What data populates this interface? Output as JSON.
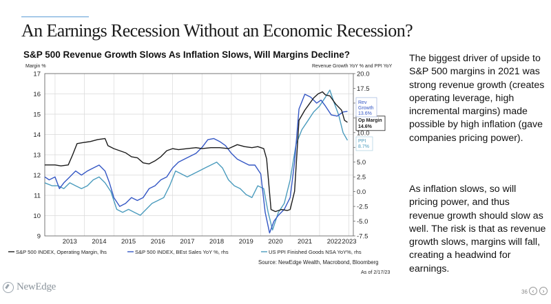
{
  "slide": {
    "title": "An Earnings Recession Without an Economic Recession?",
    "body_paragraph_1": "The biggest driver of upside to S&P 500 margins in 2021 was strong revenue growth (creates operating leverage, high incremental margins) made possible by high inflation (gave companies pricing power).",
    "body_paragraph_2": "As inflation slows, so will pricing power, and thus revenue growth should slow as well.  The risk is that as revenue growth slows, margins will fall, creating a headwind for earnings.",
    "logo_text": "NewEdge",
    "page_number": "36"
  },
  "colors": {
    "operating_margin": "#1a1a1a",
    "revenue_growth": "#3356c4",
    "ppi": "#4a9bbd",
    "accent_rule": "#5b9bd5"
  },
  "chart_data": {
    "type": "line",
    "title": "S&P 500 Revenue Growth Slows As Inflation Slows, Will Margins Decline?",
    "left_axis_label": "Margin %",
    "right_axis_label": "Revenue Growth YoY % and PPI YoY",
    "left_ylim": [
      9,
      17
    ],
    "right_ylim": [
      -7.5,
      20
    ],
    "left_ticks": [
      "9",
      "10",
      "11",
      "12",
      "13",
      "14",
      "15",
      "16",
      "17"
    ],
    "right_ticks": [
      "-7.5",
      "-5.0",
      "-2.5",
      "0.0",
      "2.5",
      "5.0",
      "7.5",
      "10.0",
      "12.5",
      "15.0",
      "17.5",
      "20.0"
    ],
    "x_ticks": [
      "2013",
      "2014",
      "2015",
      "2016",
      "2017",
      "2018",
      "2019",
      "2020",
      "2021",
      "2022",
      "2023"
    ],
    "grid": true,
    "source": "Source: NewEdge Wealth, Macrobond, Bloomberg",
    "as_of": "As of 2/17/23",
    "legend": [
      "S&P 500 INDEX, Operating Margin, lhs",
      "S&P 500 INDEX, BEst Sales YoY %, rhs",
      "US PPI Finished Goods NSA YoY%, rhs"
    ],
    "series": [
      {
        "name": "S&P 500 INDEX, Operating Margin, lhs",
        "axis": "left",
        "end_label": "Op Margin",
        "end_value": "14.6%",
        "x": [
          2012.65,
          2013.0,
          2013.2,
          2013.45,
          2013.6,
          2013.75,
          2013.95,
          2014.2,
          2014.45,
          2014.7,
          2014.8,
          2015.0,
          2015.2,
          2015.4,
          2015.6,
          2015.8,
          2016.0,
          2016.2,
          2016.4,
          2016.6,
          2016.8,
          2017.0,
          2017.2,
          2017.5,
          2017.8,
          2018.0,
          2018.3,
          2018.6,
          2018.9,
          2019.2,
          2019.45,
          2019.7,
          2019.9,
          2020.1,
          2020.2,
          2020.35,
          2020.5,
          2020.7,
          2020.9,
          2021.0,
          2021.15,
          2021.3,
          2021.5,
          2021.65,
          2021.8,
          2021.95,
          2022.1,
          2022.2,
          2022.35,
          2022.55,
          2022.75,
          2022.85,
          2022.95
        ],
        "y": [
          12.5,
          12.5,
          12.45,
          12.5,
          13.0,
          13.55,
          13.6,
          13.65,
          13.75,
          13.8,
          13.45,
          13.3,
          13.2,
          13.1,
          12.9,
          12.85,
          12.6,
          12.55,
          12.7,
          12.9,
          13.2,
          13.3,
          13.25,
          13.3,
          13.35,
          13.3,
          13.35,
          13.35,
          13.3,
          13.5,
          13.4,
          13.35,
          13.4,
          13.3,
          12.8,
          10.3,
          10.2,
          10.3,
          10.25,
          10.3,
          11.2,
          14.7,
          15.2,
          15.5,
          15.8,
          16.0,
          16.1,
          15.95,
          15.9,
          15.5,
          15.2,
          14.7,
          14.6
        ]
      },
      {
        "name": "S&P 500 INDEX, BEst Sales YoY %, rhs",
        "axis": "right",
        "end_label": "Rev Growth",
        "end_value": "13.6%",
        "x": [
          2012.65,
          2012.8,
          2013.0,
          2013.15,
          2013.3,
          2013.5,
          2013.7,
          2013.9,
          2014.1,
          2014.3,
          2014.5,
          2014.7,
          2014.85,
          2015.0,
          2015.2,
          2015.4,
          2015.6,
          2015.8,
          2016.0,
          2016.2,
          2016.4,
          2016.6,
          2016.8,
          2017.0,
          2017.2,
          2017.4,
          2017.6,
          2017.8,
          2018.0,
          2018.2,
          2018.4,
          2018.6,
          2018.8,
          2019.0,
          2019.2,
          2019.4,
          2019.6,
          2019.8,
          2020.0,
          2020.15,
          2020.3,
          2020.45,
          2020.6,
          2020.8,
          2021.0,
          2021.15,
          2021.3,
          2021.5,
          2021.7,
          2021.9,
          2022.05,
          2022.2,
          2022.4,
          2022.6,
          2022.8,
          2022.95
        ],
        "y": [
          2.5,
          2.0,
          2.5,
          0.5,
          1.5,
          2.5,
          3.5,
          2.8,
          3.5,
          4.0,
          4.5,
          3.5,
          1.5,
          -1.0,
          -2.5,
          -2.0,
          -1.0,
          -1.5,
          -1.0,
          0.5,
          1.0,
          2.0,
          2.5,
          4.0,
          5.0,
          5.5,
          6.0,
          6.5,
          7.5,
          8.8,
          9.0,
          8.5,
          7.8,
          6.5,
          5.5,
          5.0,
          4.5,
          4.5,
          3.0,
          -3.5,
          -7.0,
          -5.0,
          -4.0,
          -3.0,
          -1.0,
          5.0,
          14.0,
          16.5,
          16.0,
          15.0,
          15.5,
          14.5,
          13.0,
          12.8,
          13.5,
          13.6
        ]
      },
      {
        "name": "US PPI Finished Goods NSA YoY%, rhs",
        "axis": "right",
        "end_label": "PPI",
        "end_value": "8.7%",
        "x": [
          2012.65,
          2012.9,
          2013.1,
          2013.3,
          2013.5,
          2013.7,
          2013.9,
          2014.1,
          2014.3,
          2014.5,
          2014.7,
          2014.9,
          2015.1,
          2015.3,
          2015.5,
          2015.7,
          2015.9,
          2016.1,
          2016.3,
          2016.5,
          2016.7,
          2016.9,
          2017.1,
          2017.3,
          2017.5,
          2017.7,
          2017.9,
          2018.1,
          2018.3,
          2018.5,
          2018.7,
          2018.9,
          2019.1,
          2019.3,
          2019.5,
          2019.7,
          2019.9,
          2020.1,
          2020.25,
          2020.4,
          2020.6,
          2020.8,
          2021.0,
          2021.2,
          2021.4,
          2021.6,
          2021.8,
          2022.0,
          2022.2,
          2022.35,
          2022.5,
          2022.65,
          2022.8,
          2022.95
        ],
        "y": [
          1.5,
          1.0,
          1.0,
          0.5,
          1.5,
          1.0,
          0.5,
          1.0,
          2.0,
          2.5,
          1.5,
          0.0,
          -3.0,
          -3.5,
          -3.0,
          -3.5,
          -4.0,
          -3.0,
          -2.0,
          -1.5,
          -1.0,
          1.0,
          3.5,
          3.0,
          2.5,
          3.0,
          3.5,
          4.0,
          4.5,
          5.0,
          4.0,
          2.0,
          1.0,
          0.5,
          -0.5,
          -1.0,
          1.0,
          0.5,
          -3.5,
          -6.5,
          -3.5,
          -2.0,
          2.0,
          8.0,
          10.5,
          12.0,
          13.5,
          14.5,
          16.0,
          17.2,
          15.0,
          13.0,
          10.0,
          8.7
        ]
      }
    ]
  }
}
